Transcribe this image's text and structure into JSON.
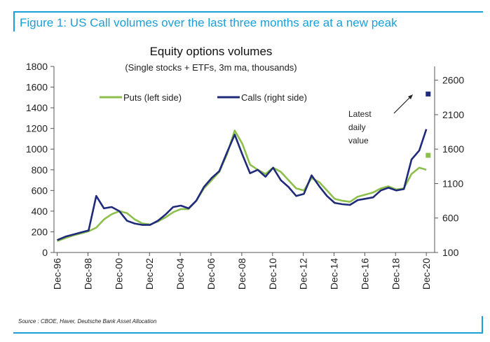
{
  "header": {
    "figure_title": "Figure 1: US Call volumes over the last three months are at a new peak"
  },
  "footer": {
    "source": "Source : CBOE, Haver, Deutsche Bank Asset Allocation"
  },
  "colors": {
    "accent": "#1aa0d8",
    "puts": "#8dbf4c",
    "calls": "#1f2a7a",
    "axis": "#555555"
  },
  "chart_data": {
    "type": "line",
    "title": "Equity options volumes",
    "subtitle": "(Single stocks + ETFs, 3m ma, thousands)",
    "xlabel": "",
    "ylabel_left": "",
    "ylabel_right": "",
    "xlim": [
      1996.75,
      2021.5
    ],
    "ylim_left": [
      0,
      1800
    ],
    "ylim_right": [
      100,
      2800
    ],
    "x_tick_labels": [
      "Dec-96",
      "Dec-98",
      "Dec-00",
      "Dec-02",
      "Dec-04",
      "Dec-06",
      "Dec-08",
      "Dec-10",
      "Dec-12",
      "Dec-14",
      "Dec-16",
      "Dec-18",
      "Dec-20"
    ],
    "x_tick_values": [
      1996.96,
      1998.96,
      2000.96,
      2002.96,
      2004.96,
      2006.96,
      2008.96,
      2010.96,
      2012.96,
      2014.96,
      2016.96,
      2018.96,
      2020.96
    ],
    "left_ticks": [
      0,
      200,
      400,
      600,
      800,
      1000,
      1200,
      1400,
      1600,
      1800
    ],
    "left_tick_labels": [
      "0",
      "200",
      "400",
      "600",
      "800",
      "1000",
      "1200",
      "1400",
      "1600",
      "1800"
    ],
    "right_ticks": [
      100,
      600,
      1100,
      1600,
      2100,
      2600
    ],
    "right_tick_labels": [
      "100",
      "600",
      "1100",
      "1600",
      "2100",
      "2600"
    ],
    "legend": {
      "placement": "top-left",
      "puts_label": "Puts (left side)",
      "calls_label": "Calls (right side)"
    },
    "annotation": {
      "lines": [
        "Latest",
        "daily",
        "value"
      ]
    },
    "series": [
      {
        "name": "Puts (left side)",
        "axis": "left",
        "x": [
          1996.96,
          1997.5,
          1998.0,
          1998.5,
          1999.0,
          1999.5,
          2000.0,
          2000.5,
          2001.0,
          2001.5,
          2002.0,
          2002.5,
          2003.0,
          2003.5,
          2004.0,
          2004.5,
          2005.0,
          2005.5,
          2006.0,
          2006.5,
          2007.0,
          2007.5,
          2008.0,
          2008.5,
          2009.0,
          2009.5,
          2010.0,
          2010.5,
          2011.0,
          2011.5,
          2012.0,
          2012.5,
          2013.0,
          2013.5,
          2014.0,
          2014.5,
          2015.0,
          2015.5,
          2016.0,
          2016.5,
          2017.0,
          2017.5,
          2018.0,
          2018.5,
          2019.0,
          2019.5,
          2020.0,
          2020.5,
          2020.96
        ],
        "values": [
          110,
          140,
          165,
          185,
          205,
          240,
          320,
          370,
          400,
          380,
          320,
          280,
          270,
          300,
          340,
          390,
          420,
          420,
          500,
          620,
          700,
          780,
          950,
          1180,
          1050,
          850,
          800,
          760,
          820,
          780,
          700,
          620,
          600,
          720,
          680,
          600,
          520,
          500,
          490,
          540,
          560,
          580,
          620,
          640,
          610,
          620,
          760,
          820,
          800
        ]
      },
      {
        "name": "Calls (right side)",
        "axis": "right",
        "x": [
          1996.96,
          1997.5,
          1998.0,
          1998.5,
          1999.0,
          1999.5,
          2000.0,
          2000.5,
          2001.0,
          2001.5,
          2002.0,
          2002.5,
          2003.0,
          2003.5,
          2004.0,
          2004.5,
          2005.0,
          2005.5,
          2006.0,
          2006.5,
          2007.0,
          2007.5,
          2008.0,
          2008.5,
          2009.0,
          2009.5,
          2010.0,
          2010.5,
          2011.0,
          2011.5,
          2012.0,
          2012.5,
          2013.0,
          2013.5,
          2014.0,
          2014.5,
          2015.0,
          2015.5,
          2016.0,
          2016.5,
          2017.0,
          2017.5,
          2018.0,
          2018.5,
          2019.0,
          2019.5,
          2020.0,
          2020.5,
          2020.96
        ],
        "values": [
          280,
          330,
          360,
          390,
          420,
          920,
          740,
          760,
          700,
          560,
          520,
          500,
          500,
          560,
          650,
          760,
          780,
          740,
          850,
          1050,
          1180,
          1280,
          1550,
          1810,
          1520,
          1250,
          1300,
          1200,
          1330,
          1150,
          1050,
          920,
          950,
          1220,
          1060,
          920,
          820,
          800,
          790,
          860,
          880,
          900,
          1000,
          1040,
          1000,
          1020,
          1450,
          1580,
          1890
        ]
      }
    ],
    "latest_daily_values": {
      "puts_left": 940,
      "calls_right": 2400
    }
  }
}
